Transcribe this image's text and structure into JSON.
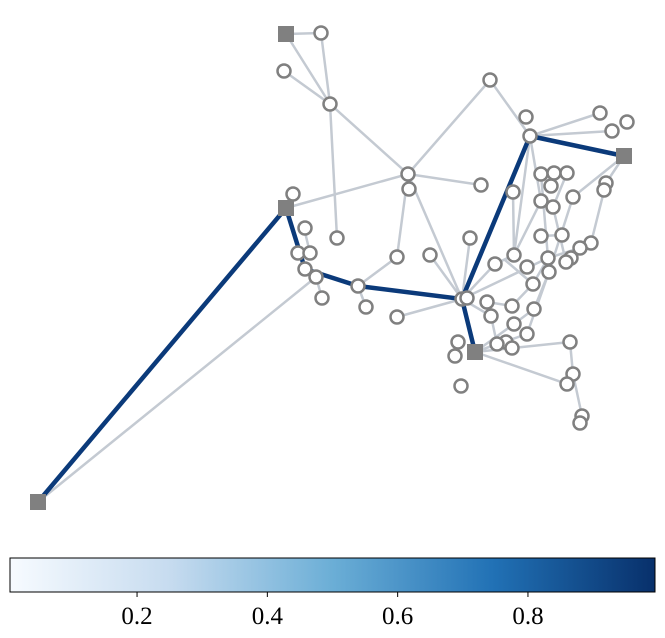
{
  "colorbar": {
    "clim": [
      0.005,
      0.995
    ],
    "ticks": [
      0.2,
      0.4,
      0.6,
      0.8
    ],
    "colormap": "Blues"
  }
}
